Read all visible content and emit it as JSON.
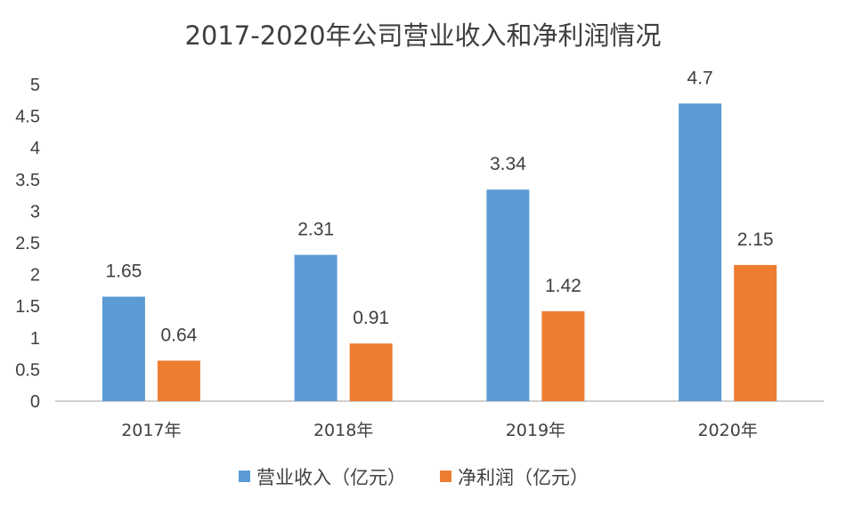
{
  "colors": {
    "revenue": "#5B9BD5",
    "profit": "#ED7D31",
    "axis": "#BFBFBF",
    "text": "#404040"
  },
  "chart_data": {
    "type": "bar",
    "title": "2017-2020年公司营业收入和净利润情况",
    "categories": [
      "2017年",
      "2018年",
      "2019年",
      "2020年"
    ],
    "series": [
      {
        "name": "营业收入（亿元）",
        "values": [
          1.65,
          2.31,
          3.34,
          4.7
        ]
      },
      {
        "name": "净利润（亿元）",
        "values": [
          0.64,
          0.91,
          1.42,
          2.15
        ]
      }
    ],
    "value_labels": [
      [
        "1.65",
        "2.31",
        "3.34",
        "4.7"
      ],
      [
        "0.64",
        "0.91",
        "1.42",
        "2.15"
      ]
    ],
    "ylim": [
      0,
      5
    ],
    "yticks": [
      "0",
      "0.5",
      "1",
      "1.5",
      "2",
      "2.5",
      "3",
      "3.5",
      "4",
      "4.5",
      "5"
    ],
    "xlabel": "",
    "ylabel": "",
    "grid": false,
    "legend": "bottom"
  }
}
